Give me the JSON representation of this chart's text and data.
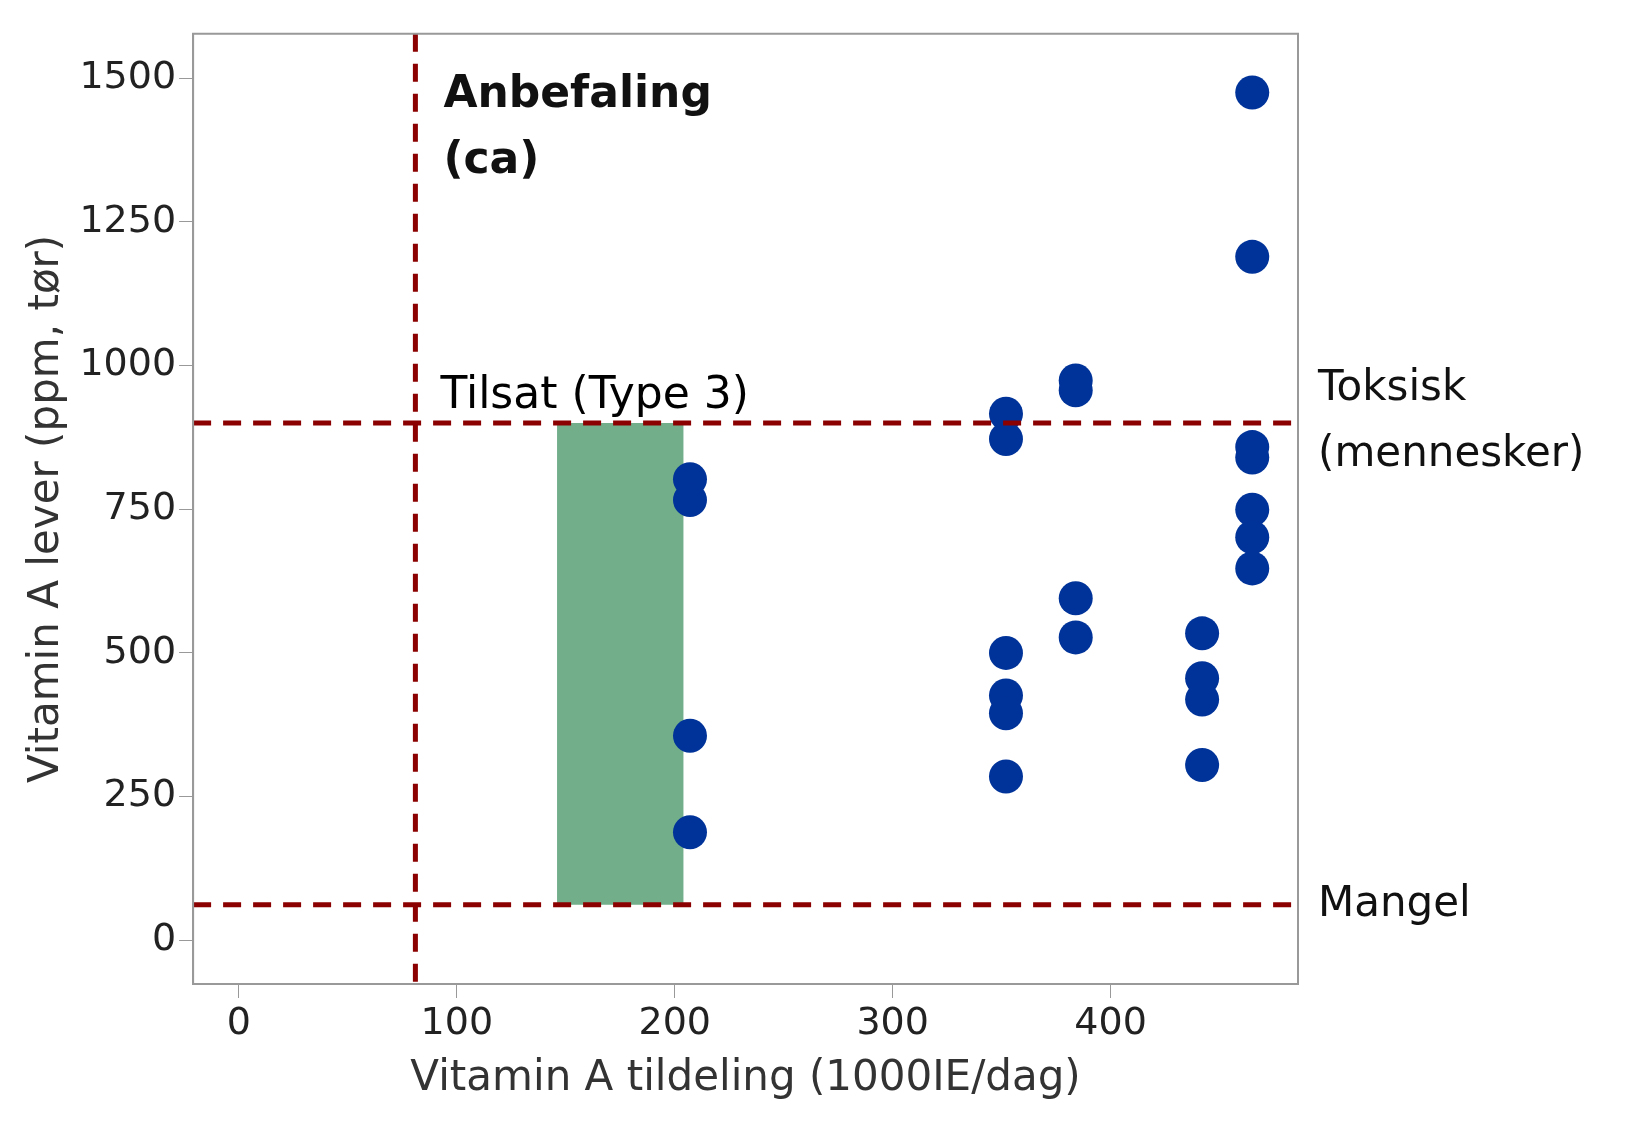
{
  "chart_data": {
    "type": "scatter",
    "xlabel": "Vitamin A tildeling (1000IE/dag)",
    "ylabel": "Vitamin A lever (ppm, tør)",
    "x": [
      207,
      207,
      207,
      207,
      352,
      352,
      352,
      352,
      352,
      352,
      384,
      384,
      384,
      384,
      442,
      442,
      442,
      442,
      465,
      465,
      465,
      465,
      465,
      465,
      465
    ],
    "values": [
      802,
      766,
      356,
      188,
      916,
      872,
      500,
      426,
      395,
      285,
      974,
      957,
      595,
      527,
      534,
      456,
      419,
      305,
      1475,
      1189,
      858,
      840,
      749,
      701,
      647
    ],
    "color": "#003399",
    "marker": "circle",
    "grid": false,
    "legend": false,
    "xlim": [
      -21,
      486
    ],
    "ylim": [
      -76,
      1577
    ],
    "xticks": [
      0,
      100,
      200,
      300,
      400
    ],
    "yticks": [
      0,
      250,
      500,
      750,
      1000,
      1250,
      1500
    ],
    "ref_lines": [
      {
        "axis": "x",
        "value": 81,
        "label": "Anbefaling (ca)",
        "color": "#8b0000",
        "line_style": "dashed"
      },
      {
        "axis": "y",
        "value": 900,
        "label": "Toksisk (mennesker)",
        "color": "#8b0000",
        "line_style": "dashed"
      },
      {
        "axis": "y",
        "value": 62,
        "label": "Mangel",
        "color": "#8b0000",
        "line_style": "dashed"
      }
    ],
    "bands": [
      {
        "axis": "x",
        "from": 146,
        "to": 204,
        "label": "Tilsat (Type 3)",
        "color": "#72ae8a"
      }
    ]
  }
}
